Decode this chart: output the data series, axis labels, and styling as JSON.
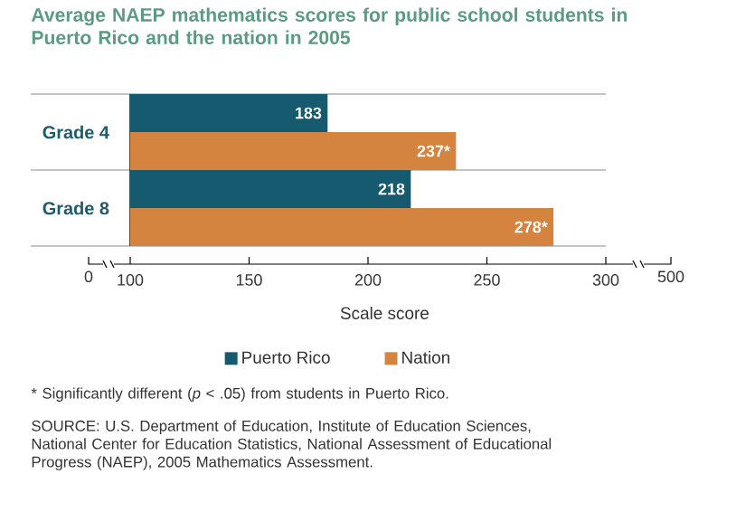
{
  "chart_data": {
    "type": "bar",
    "orientation": "horizontal",
    "title": "Average NAEP mathematics scores for public school students in Puerto Rico and the nation in 2005",
    "xlabel": "Scale score",
    "categories": [
      "Grade 4",
      "Grade 8"
    ],
    "series": [
      {
        "name": "Puerto Rico",
        "color": "#155a6e",
        "values": [
          183,
          218
        ],
        "value_labels": [
          "183",
          "218"
        ]
      },
      {
        "name": "Nation",
        "color": "#d4843f",
        "values": [
          237,
          278
        ],
        "value_labels": [
          "237*",
          "278*"
        ]
      }
    ],
    "xlim": [
      100,
      300
    ],
    "xticks": [
      100,
      150,
      200,
      250,
      300
    ],
    "legend": "bottom",
    "annotations": [
      "* Significantly different (*p* < .05) from students in Puerto Rico.",
      "SOURCE: U.S. Department of Education, Institute of Education Sciences, National Center for Education Statistics, National Assessment of Educational Progress (NAEP), 2005 Mathematics Assessment.",
      "0",
      "500"
    ]
  }
}
